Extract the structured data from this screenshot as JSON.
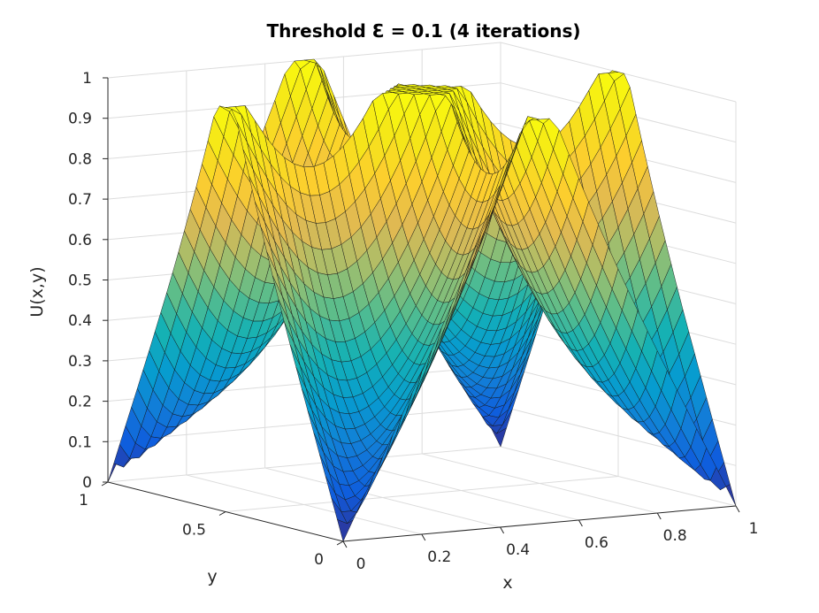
{
  "chart_data": {
    "type": "surface",
    "title": "Threshold Ɛ = 0.1 (4 iterations)",
    "xlabel": "x",
    "ylabel": "y",
    "zlabel": "U(x,y)",
    "x_ticks": [
      "0",
      "0.2",
      "0.4",
      "0.6",
      "0.8",
      "1"
    ],
    "y_ticks": [
      "0",
      "0.5",
      "1"
    ],
    "z_ticks": [
      "0",
      "0.1",
      "0.2",
      "0.3",
      "0.4",
      "0.5",
      "0.6",
      "0.7",
      "0.8",
      "0.9",
      "1"
    ],
    "xlim": [
      0,
      1
    ],
    "ylim": [
      0,
      1
    ],
    "zlim": [
      0,
      1
    ],
    "grid": true,
    "colormap": "parula",
    "boundary_conditions": {
      "y0": "1 - 2|x - 0.5|",
      "y1": "1 - 2|x - 0.5|",
      "x0": "1 - 2|y - 0.5|",
      "x1": "1 - 2|y - 0.5|"
    },
    "iterations": 4,
    "threshold": 0.1
  }
}
